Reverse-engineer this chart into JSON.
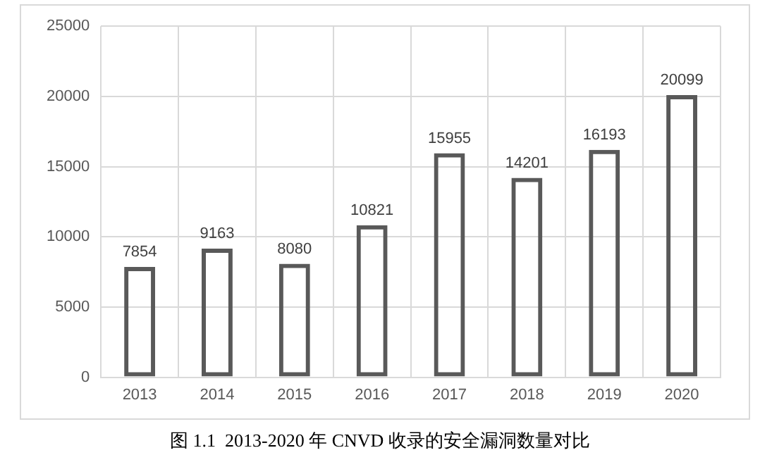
{
  "chart_data": {
    "type": "bar",
    "categories": [
      "2013",
      "2014",
      "2015",
      "2016",
      "2017",
      "2018",
      "2019",
      "2020"
    ],
    "values": [
      7854,
      9163,
      8080,
      10821,
      15955,
      14201,
      16193,
      20099
    ],
    "color": "#595959",
    "ylim": [
      0,
      25000
    ],
    "yticks": [
      0,
      5000,
      10000,
      15000,
      20000,
      25000
    ],
    "grid": true,
    "data_labels": true,
    "annotations": [
      "图 1.1  2013-2020 年 CNVD 收录的安全漏洞数量对比"
    ]
  }
}
